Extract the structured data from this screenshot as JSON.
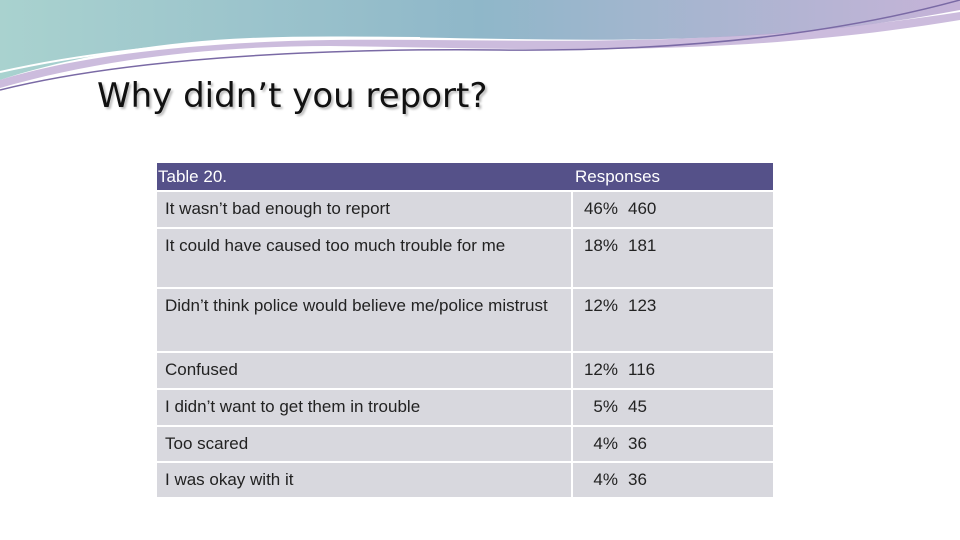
{
  "title": "Why didn’t you report?",
  "table": {
    "header": [
      "Table 20.",
      "Responses"
    ],
    "rows": [
      [
        "It wasn’t bad enough to report",
        "46%",
        "460"
      ],
      [
        "It could have caused too much trouble for me",
        "18%",
        "181"
      ],
      [
        "Didn’t think police would believe me/police mistrust",
        "12%",
        "123"
      ],
      [
        "Confused",
        "12%",
        "116"
      ],
      [
        "I didn’t want to get them in trouble",
        "5%",
        "45"
      ],
      [
        "Too scared",
        "4%",
        "36"
      ],
      [
        "I was okay with it",
        "4%",
        "36"
      ]
    ]
  }
}
